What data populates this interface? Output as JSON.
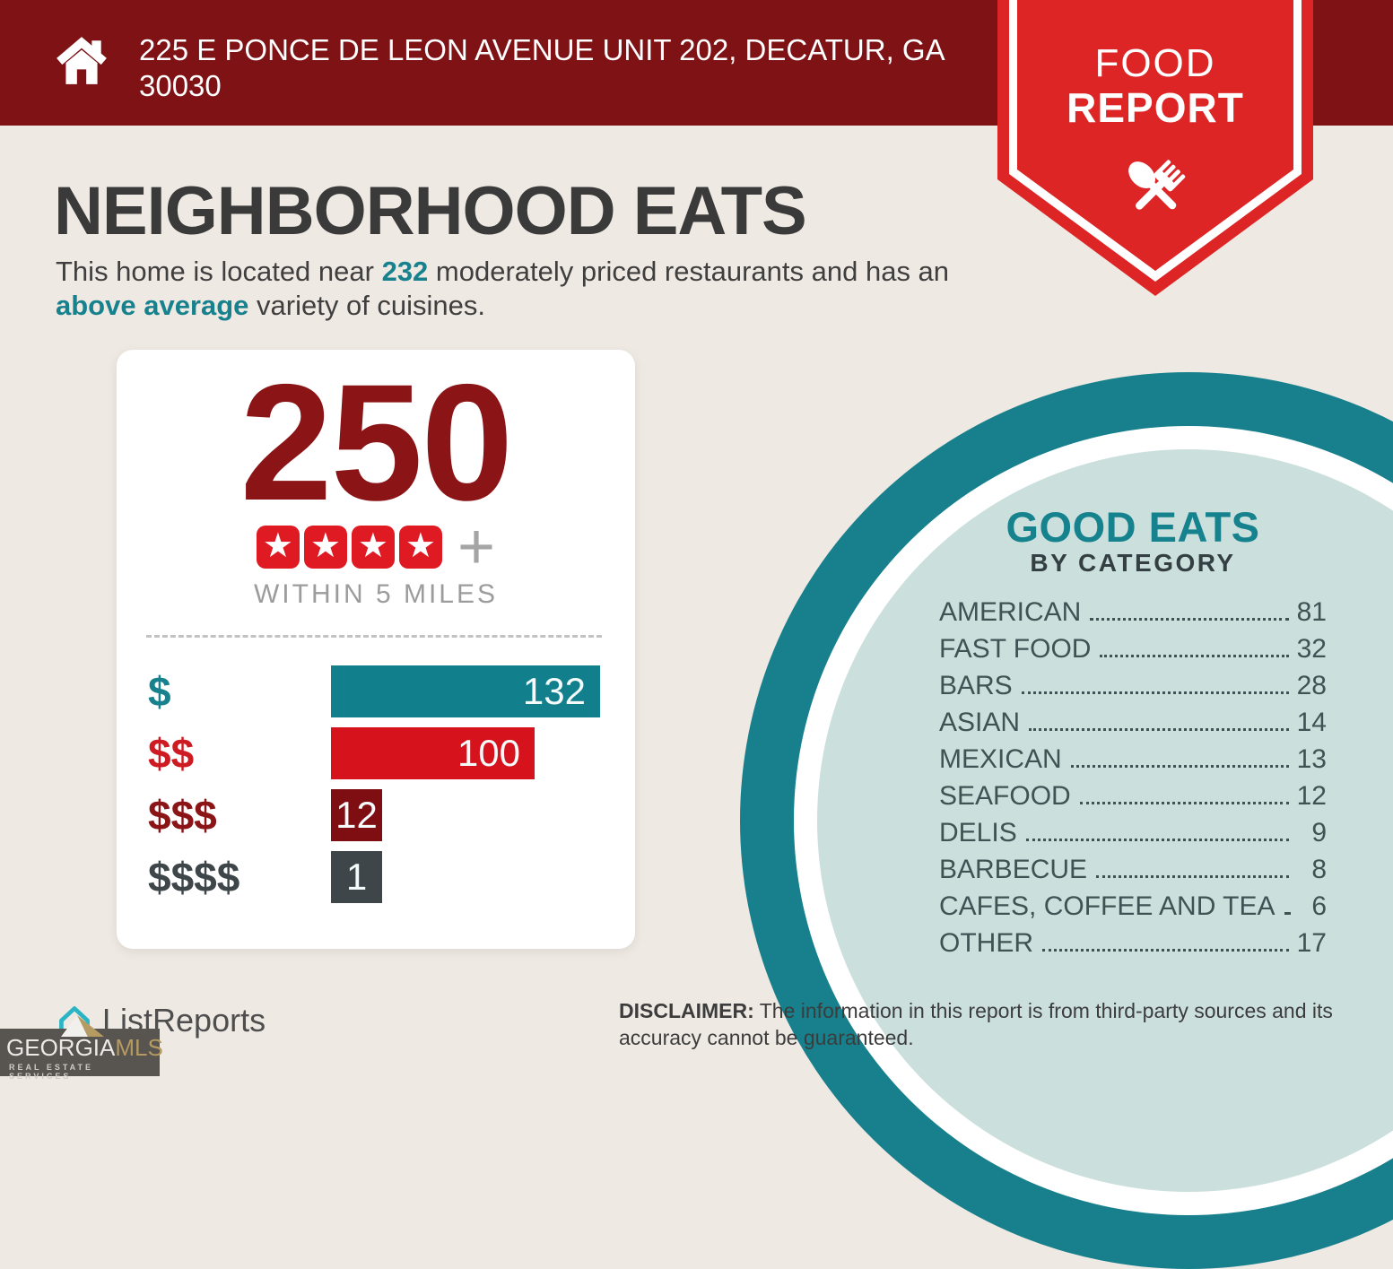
{
  "header": {
    "address": "225 E PONCE DE LEON AVENUE UNIT 202, DECATUR, GA 30030"
  },
  "ribbon": {
    "line1": "FOOD",
    "line2": "REPORT"
  },
  "page_title": "NEIGHBORHOOD EATS",
  "intro": {
    "part1": "This home is located near ",
    "count": "232",
    "part2": " moderately priced restaurants and has an ",
    "highlight": "above average",
    "part3": " variety of cuisines."
  },
  "summary_card": {
    "total": "250",
    "star_count": 4,
    "radius_label": "WITHIN 5 MILES"
  },
  "chart_data": {
    "type": "bar",
    "categories": [
      "$",
      "$$",
      "$$$",
      "$$$$"
    ],
    "values": [
      132,
      100,
      12,
      1
    ],
    "bar_colors": [
      "#12808C",
      "#D6121C",
      "#7E0E11",
      "#3E464A"
    ],
    "label_colors": [
      "#17828D",
      "#CE1A22",
      "#8B1417",
      "#3E464A"
    ],
    "orientation": "horizontal",
    "xlim": [
      0,
      140
    ],
    "value_labels_inside_bars": true
  },
  "good_eats": {
    "title": "GOOD EATS",
    "subtitle": "BY CATEGORY",
    "items": [
      {
        "label": "AMERICAN",
        "value": 81
      },
      {
        "label": "FAST FOOD",
        "value": 32
      },
      {
        "label": "BARS",
        "value": 28
      },
      {
        "label": "ASIAN",
        "value": 14
      },
      {
        "label": "MEXICAN",
        "value": 13
      },
      {
        "label": "SEAFOOD",
        "value": 12
      },
      {
        "label": "DELIS",
        "value": 9
      },
      {
        "label": "BARBECUE",
        "value": 8
      },
      {
        "label": "CAFES, COFFEE AND TEA",
        "value": 6
      },
      {
        "label": "OTHER",
        "value": 17
      }
    ]
  },
  "footer": {
    "listreports_name": "ListReports",
    "georgiamls": {
      "name_part1": "GEORGIA",
      "name_part2": "MLS",
      "tagline": "REAL ESTATE SERVICES"
    },
    "disclaimer_label": "DISCLAIMER:",
    "disclaimer_text": " The information in this report is from third-party sources and its accuracy cannot be guaranteed."
  },
  "colors": {
    "header_red": "#7E1215",
    "ribbon_red": "#DD2526",
    "accent_teal": "#17828D",
    "maroon": "#8B1417",
    "bright_red": "#D6121C",
    "slate": "#3E464A",
    "mint": "#CBE0DD",
    "background_cream": "#EFE9E3",
    "gold": "#B59A62"
  }
}
